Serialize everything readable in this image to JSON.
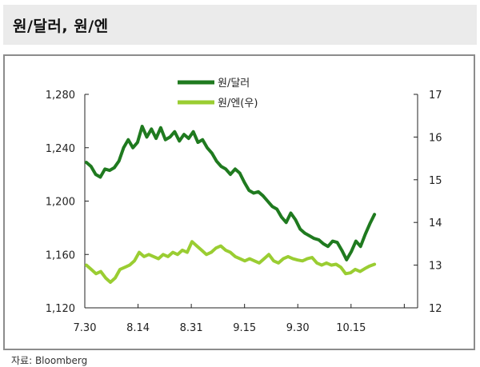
{
  "title": "원/달러, 원/엔",
  "source": "자료: Bloomberg",
  "colors": {
    "krw_usd": "#1f7a1f",
    "krw_jpy": "#9acd32",
    "axis": "#222222"
  },
  "chart_data": {
    "type": "line",
    "title": "원/달러, 원/엔",
    "xlabel": "",
    "ylabel_left": "",
    "ylabel_right": "",
    "x_ticks": [
      "7.30",
      "8.14",
      "8.31",
      "9.15",
      "9.30",
      "10.15"
    ],
    "y_left": {
      "ylim": [
        1120,
        1280
      ],
      "ticks": [
        "1,120",
        "1,160",
        "1,200",
        "1,240",
        "1,280"
      ],
      "tick_values": [
        1120,
        1160,
        1200,
        1240,
        1280
      ]
    },
    "y_right": {
      "ylim": [
        12,
        17
      ],
      "ticks": [
        "12",
        "13",
        "14",
        "15",
        "16",
        "17"
      ],
      "tick_values": [
        12,
        13,
        14,
        15,
        16,
        17
      ]
    },
    "grid": false,
    "legend_position": "top-center",
    "series": [
      {
        "name": "원/달러",
        "axis": "left",
        "values": [
          1229,
          1226,
          1220,
          1218,
          1224,
          1223,
          1225,
          1230,
          1240,
          1246,
          1240,
          1244,
          1256,
          1248,
          1254,
          1247,
          1255,
          1246,
          1248,
          1252,
          1245,
          1250,
          1247,
          1252,
          1244,
          1246,
          1240,
          1236,
          1230,
          1226,
          1224,
          1220,
          1224,
          1221,
          1214,
          1208,
          1206,
          1207,
          1204,
          1200,
          1196,
          1194,
          1188,
          1184,
          1191,
          1186,
          1179,
          1176,
          1174,
          1172,
          1171,
          1168,
          1166,
          1170,
          1169,
          1163,
          1156,
          1162,
          1170,
          1166,
          1175,
          1183,
          1190
        ]
      },
      {
        "name": "원/엔(우)",
        "axis": "right",
        "values": [
          13.0,
          12.9,
          12.8,
          12.85,
          12.7,
          12.6,
          12.7,
          12.9,
          12.95,
          13.0,
          13.1,
          13.3,
          13.2,
          13.25,
          13.2,
          13.15,
          13.25,
          13.2,
          13.3,
          13.25,
          13.35,
          13.3,
          13.55,
          13.45,
          13.35,
          13.25,
          13.3,
          13.4,
          13.45,
          13.35,
          13.3,
          13.2,
          13.15,
          13.1,
          13.15,
          13.1,
          13.05,
          13.15,
          13.25,
          13.1,
          13.05,
          13.15,
          13.2,
          13.15,
          13.12,
          13.1,
          13.15,
          13.18,
          13.05,
          13.0,
          13.05,
          13.0,
          13.02,
          12.95,
          12.8,
          12.82,
          12.9,
          12.85,
          12.92,
          12.98,
          13.02
        ]
      }
    ]
  }
}
